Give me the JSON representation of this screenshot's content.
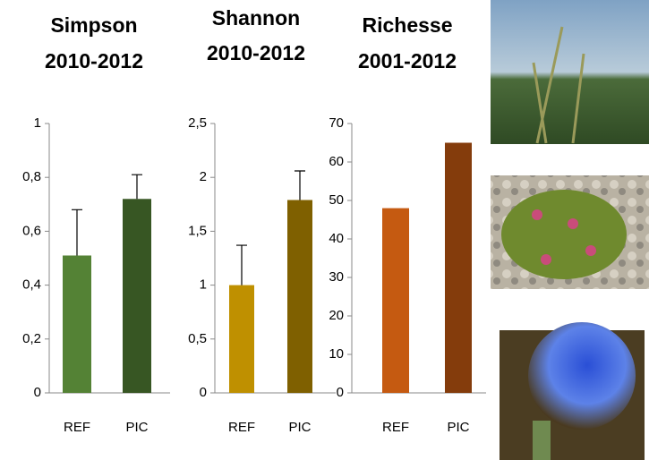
{
  "chart_data": [
    {
      "type": "bar",
      "title": "Simpson",
      "subtitle": "2010-2012",
      "categories": [
        "REF",
        "PIC"
      ],
      "values": [
        0.51,
        0.72
      ],
      "errors": [
        0.17,
        0.09
      ],
      "colors": [
        "#548235",
        "#375623"
      ],
      "ylim": [
        0,
        1
      ],
      "yticks": [
        0,
        {
          "value": 0.2,
          "label": "0,2"
        },
        {
          "value": 0.4,
          "label": "0,4"
        },
        {
          "value": 0.6,
          "label": "0,6"
        },
        {
          "value": 0.8,
          "label": "0,8"
        },
        1
      ]
    },
    {
      "type": "bar",
      "title": "Shannon",
      "subtitle": "2010-2012",
      "categories": [
        "REF",
        "PIC"
      ],
      "values": [
        1.0,
        1.79
      ],
      "errors": [
        0.37,
        0.27
      ],
      "colors": [
        "#bf9000",
        "#7f6000"
      ],
      "ylim": [
        0,
        2.5
      ],
      "yticks": [
        0,
        {
          "value": 0.5,
          "label": "0,5"
        },
        1,
        {
          "value": 1.5,
          "label": "1,5"
        },
        2,
        {
          "value": 2.5,
          "label": "2,5"
        }
      ]
    },
    {
      "type": "bar",
      "title": "Richesse",
      "subtitle": "2001-2012",
      "categories": [
        "REF",
        "PIC"
      ],
      "values": [
        48,
        65
      ],
      "colors": [
        "#c55a11",
        "#843c0c"
      ],
      "ylim": [
        0,
        70
      ],
      "yticks": [
        0,
        10,
        20,
        30,
        40,
        50,
        60,
        70
      ]
    }
  ]
}
